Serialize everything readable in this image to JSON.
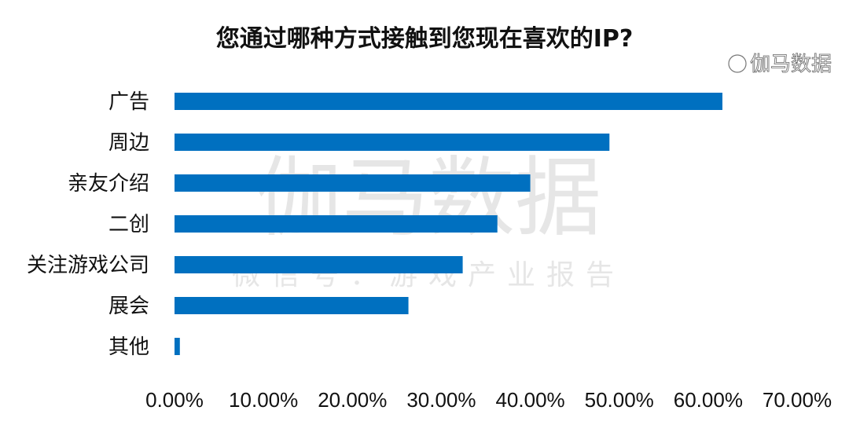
{
  "chart_data": {
    "type": "bar",
    "orientation": "horizontal",
    "title": "您通过哪种方式接触到您现在喜欢的IP?",
    "categories": [
      "广告",
      "周边",
      "亲友介绍",
      "二创",
      "关注游戏公司",
      "展会",
      "其他"
    ],
    "values": [
      61.6,
      48.9,
      40.0,
      36.3,
      32.4,
      26.3,
      0.6
    ],
    "unit": "%",
    "xlim": [
      0,
      70
    ],
    "xticks": [
      "0.00%",
      "10.00%",
      "20.00%",
      "30.00%",
      "40.00%",
      "50.00%",
      "60.00%",
      "70.00%"
    ],
    "grid": false,
    "bar_color": "#0070c0"
  },
  "watermark": {
    "main": "伽马数据",
    "sub": "微信号：游戏产业报告",
    "corner": "伽马数据"
  }
}
